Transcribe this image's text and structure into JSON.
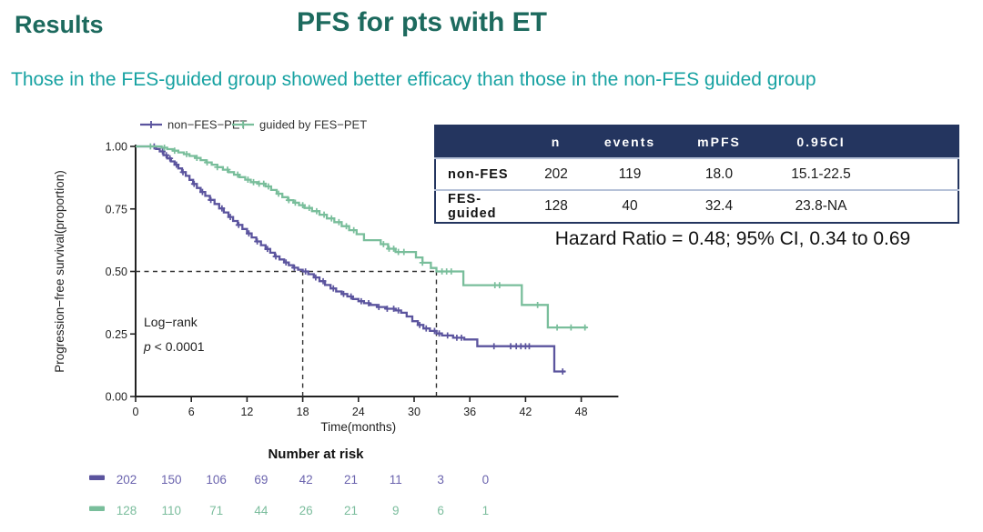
{
  "page": {
    "kicker": "Results",
    "title": "PFS for pts with ET",
    "subtitle": "Those in the FES-guided group showed better efficacy than those in the non-FES guided group",
    "hazard_text": "Hazard Ratio = 0.48; 95% CI, 0.34 to 0.69"
  },
  "colors": {
    "heading_teal": "#1d6a5e",
    "subtitle_teal": "#17a2a2",
    "table_header_navy": "#24355f",
    "purple": "#5b549e",
    "green": "#79be9b",
    "axis": "#222222"
  },
  "summary_table": {
    "headers": [
      "",
      "n",
      "events",
      "mPFS",
      "0.95CI"
    ],
    "rows": [
      {
        "label": "non-FES",
        "n": "202",
        "events": "119",
        "mpfs": "18.0",
        "ci": "15.1-22.5"
      },
      {
        "label": "FES-guided",
        "n": "128",
        "events": "40",
        "mpfs": "32.4",
        "ci": "23.8-NA"
      }
    ]
  },
  "chart_data": {
    "type": "line",
    "subtype": "kaplan-meier-step",
    "title": "",
    "xlabel": "Time(months)",
    "ylabel": "Progression−free survival(proportion)",
    "xlim": [
      0,
      50
    ],
    "ylim": [
      0,
      1
    ],
    "grid": false,
    "legend_position": "top",
    "xticks": [
      0,
      6,
      12,
      18,
      24,
      30,
      36,
      42,
      48
    ],
    "ytick_labels": [
      "1.00",
      "0.75",
      "0.50",
      "0.25",
      "0.00"
    ],
    "ytick_values": [
      1.0,
      0.75,
      0.5,
      0.25,
      0.0
    ],
    "annotations": {
      "logrank": "Log−rank",
      "p_italic": "p",
      "p_rest": " < 0.0001"
    },
    "guides": {
      "median_y": 0.5,
      "median_x": [
        18,
        32.4
      ]
    },
    "series": [
      {
        "name": "non−FES−PET",
        "color": "#5b549e",
        "points": [
          [
            0,
            1
          ],
          [
            1.8,
            1
          ],
          [
            2.2,
            0.99
          ],
          [
            2.6,
            0.98
          ],
          [
            3,
            0.965
          ],
          [
            3.4,
            0.952
          ],
          [
            3.8,
            0.94
          ],
          [
            4.2,
            0.927
          ],
          [
            4.6,
            0.912
          ],
          [
            5,
            0.897
          ],
          [
            5.4,
            0.882
          ],
          [
            5.8,
            0.866
          ],
          [
            6.2,
            0.85
          ],
          [
            6.6,
            0.834
          ],
          [
            7,
            0.818
          ],
          [
            7.5,
            0.802
          ],
          [
            8,
            0.786
          ],
          [
            8.5,
            0.77
          ],
          [
            9,
            0.752
          ],
          [
            9.5,
            0.736
          ],
          [
            10,
            0.718
          ],
          [
            10.5,
            0.702
          ],
          [
            11,
            0.686
          ],
          [
            11.5,
            0.67
          ],
          [
            12,
            0.652
          ],
          [
            12.5,
            0.636
          ],
          [
            13,
            0.62
          ],
          [
            13.5,
            0.605
          ],
          [
            14,
            0.59
          ],
          [
            14.5,
            0.575
          ],
          [
            15,
            0.56
          ],
          [
            15.5,
            0.548
          ],
          [
            16,
            0.536
          ],
          [
            16.5,
            0.525
          ],
          [
            17,
            0.515
          ],
          [
            17.5,
            0.507
          ],
          [
            18,
            0.5
          ],
          [
            18.6,
            0.489
          ],
          [
            19.2,
            0.476
          ],
          [
            19.8,
            0.461
          ],
          [
            20.4,
            0.446
          ],
          [
            21,
            0.432
          ],
          [
            21.6,
            0.42
          ],
          [
            22.2,
            0.41
          ],
          [
            22.8,
            0.4
          ],
          [
            23.4,
            0.39
          ],
          [
            24,
            0.381
          ],
          [
            24.6,
            0.373
          ],
          [
            25.2,
            0.366
          ],
          [
            26,
            0.358
          ],
          [
            27,
            0.351
          ],
          [
            28,
            0.344
          ],
          [
            28.6,
            0.335
          ],
          [
            29.2,
            0.32
          ],
          [
            29.8,
            0.301
          ],
          [
            30.4,
            0.286
          ],
          [
            31,
            0.272
          ],
          [
            31.7,
            0.262
          ],
          [
            32.4,
            0.252
          ],
          [
            33,
            0.244
          ],
          [
            34.2,
            0.235
          ],
          [
            35.4,
            0.228
          ],
          [
            36.8,
            0.201
          ],
          [
            45.1,
            0.1
          ],
          [
            46.3,
            0.1
          ]
        ],
        "censors": [
          2.0,
          2.9,
          3.3,
          3.7,
          4.4,
          5.1,
          6.3,
          7.2,
          8.1,
          9.3,
          10.2,
          11.1,
          12.2,
          13.1,
          14.2,
          15.1,
          16.2,
          17.1,
          18.3,
          19.4,
          20.2,
          21.3,
          22.4,
          23.2,
          24.3,
          25.1,
          26.2,
          27.1,
          27.8,
          28.3,
          30.6,
          31.3,
          32.2,
          32.7,
          33.6,
          34.6,
          35.1,
          38.6,
          40.4,
          41.0,
          41.5,
          42.0,
          42.4,
          46.0
        ]
      },
      {
        "name": "guided by FES−PET",
        "color": "#79be9b",
        "points": [
          [
            0,
            1
          ],
          [
            2.2,
            1
          ],
          [
            2.8,
            0.995
          ],
          [
            3.4,
            0.989
          ],
          [
            4,
            0.983
          ],
          [
            4.6,
            0.976
          ],
          [
            5.2,
            0.969
          ],
          [
            5.8,
            0.962
          ],
          [
            6.4,
            0.954
          ],
          [
            7,
            0.945
          ],
          [
            7.6,
            0.936
          ],
          [
            8.2,
            0.927
          ],
          [
            8.8,
            0.917
          ],
          [
            9.4,
            0.907
          ],
          [
            10,
            0.897
          ],
          [
            10.6,
            0.887
          ],
          [
            11.2,
            0.877
          ],
          [
            11.8,
            0.867
          ],
          [
            12.4,
            0.857
          ],
          [
            13.2,
            0.851
          ],
          [
            14,
            0.84
          ],
          [
            14.6,
            0.826
          ],
          [
            15.2,
            0.811
          ],
          [
            15.8,
            0.797
          ],
          [
            16.4,
            0.785
          ],
          [
            17,
            0.775
          ],
          [
            17.6,
            0.765
          ],
          [
            18.2,
            0.754
          ],
          [
            19,
            0.741
          ],
          [
            19.8,
            0.727
          ],
          [
            20.6,
            0.712
          ],
          [
            21.4,
            0.697
          ],
          [
            22.2,
            0.681
          ],
          [
            23,
            0.665
          ],
          [
            23.8,
            0.649
          ],
          [
            24.6,
            0.625
          ],
          [
            26.4,
            0.609
          ],
          [
            27.2,
            0.591
          ],
          [
            28,
            0.578
          ],
          [
            30.2,
            0.556
          ],
          [
            30.9,
            0.535
          ],
          [
            31.8,
            0.514
          ],
          [
            32.4,
            0.5
          ],
          [
            35.3,
            0.445
          ],
          [
            41.6,
            0.366
          ],
          [
            44.4,
            0.276
          ],
          [
            48.6,
            0.276
          ]
        ],
        "censors": [
          1.6,
          3.1,
          4.2,
          5.5,
          6.6,
          7.7,
          8.8,
          9.9,
          11.0,
          12.1,
          12.7,
          13.3,
          13.8,
          14.3,
          15.4,
          16.5,
          17.2,
          18.0,
          18.7,
          19.5,
          20.3,
          21.1,
          21.9,
          22.7,
          23.5,
          26.7,
          27.3,
          27.8,
          28.3,
          28.9,
          30.9,
          33.0,
          33.5,
          34.0,
          38.7,
          39.2,
          43.3,
          45.4,
          46.9,
          48.4
        ]
      }
    ],
    "risk_table": {
      "title": "Number at risk",
      "x_values": [
        0,
        6,
        12,
        18,
        24,
        30,
        36,
        42,
        48
      ],
      "rows": [
        {
          "name": "non−FES−PET",
          "color": "#6b64ae",
          "dash_color": "#5b549e",
          "counts": [
            "202",
            "150",
            "106",
            "69",
            "42",
            "21",
            "11",
            "3",
            "0"
          ]
        },
        {
          "name": "guided by FES−PET",
          "color": "#7bbd9d",
          "dash_color": "#79be9b",
          "counts": [
            "128",
            "110",
            "71",
            "44",
            "26",
            "21",
            "9",
            "6",
            "1"
          ]
        }
      ]
    }
  }
}
